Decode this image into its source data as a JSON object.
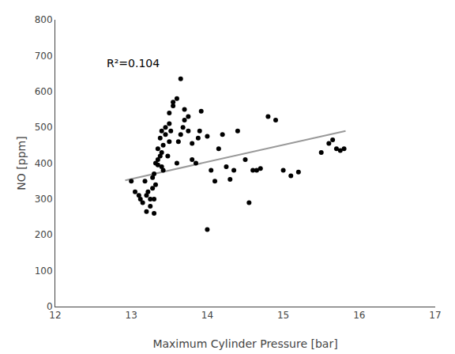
{
  "chart_data": {
    "type": "scatter",
    "xlabel": "Maximum Cylinder Pressure [bar]",
    "ylabel": "NO [ppm]",
    "annotations": [
      "R²=0.104"
    ],
    "series": [
      {
        "type": "scatter",
        "marker": "circle",
        "color": "#000000",
        "x": [
          13.0,
          13.05,
          13.1,
          13.12,
          13.15,
          13.18,
          13.2,
          13.2,
          13.22,
          13.25,
          13.25,
          13.28,
          13.28,
          13.3,
          13.3,
          13.3,
          13.32,
          13.32,
          13.35,
          13.35,
          13.35,
          13.38,
          13.38,
          13.4,
          13.4,
          13.4,
          13.42,
          13.42,
          13.45,
          13.45,
          13.48,
          13.5,
          13.5,
          13.5,
          13.52,
          13.55,
          13.55,
          13.6,
          13.6,
          13.62,
          13.65,
          13.65,
          13.68,
          13.7,
          13.7,
          13.75,
          13.75,
          13.8,
          13.8,
          13.85,
          13.88,
          13.9,
          13.92,
          14.0,
          14.0,
          14.05,
          14.1,
          14.15,
          14.2,
          14.25,
          14.3,
          14.35,
          14.4,
          14.5,
          14.55,
          14.6,
          14.65,
          14.7,
          14.8,
          14.9,
          15.0,
          15.1,
          15.2,
          15.5,
          15.6,
          15.65,
          15.7,
          15.75,
          15.8
        ],
        "values": [
          350,
          320,
          310,
          300,
          290,
          350,
          265,
          310,
          320,
          280,
          300,
          330,
          360,
          260,
          300,
          370,
          340,
          400,
          395,
          410,
          440,
          420,
          470,
          390,
          430,
          490,
          380,
          450,
          480,
          500,
          420,
          460,
          510,
          540,
          490,
          560,
          570,
          580,
          400,
          460,
          480,
          635,
          500,
          520,
          550,
          530,
          490,
          410,
          455,
          400,
          470,
          490,
          545,
          475,
          215,
          380,
          350,
          440,
          480,
          390,
          355,
          380,
          490,
          410,
          290,
          380,
          380,
          385,
          530,
          520,
          380,
          365,
          375,
          430,
          455,
          465,
          440,
          435,
          440
        ]
      },
      {
        "type": "line",
        "line_style": "solid",
        "color": "#999999",
        "x": [
          12.92,
          15.82
        ],
        "values": [
          352,
          490
        ]
      }
    ],
    "xlim": [
      12,
      17
    ],
    "ylim": [
      0,
      800
    ],
    "xticks": [
      12,
      13,
      14,
      15,
      16,
      17
    ],
    "yticks": [
      0,
      100,
      200,
      300,
      400,
      500,
      600,
      700,
      800
    ],
    "grid": false
  }
}
